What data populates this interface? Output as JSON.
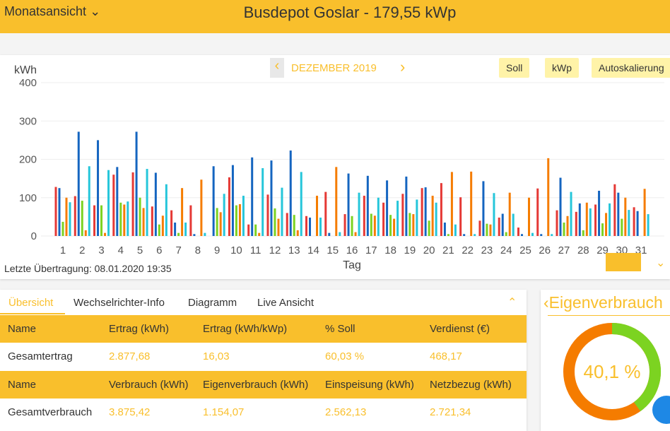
{
  "header": {
    "view": "Monatsansicht",
    "title": "Busdepot Goslar - 179,55 kWp"
  },
  "nav": {
    "month": "DEZEMBER 2019",
    "buttons": [
      "Soll",
      "kWp",
      "Autoskalierung"
    ]
  },
  "chart_data": {
    "type": "bar",
    "y_label": "kWh",
    "x_label": "Tag",
    "categories": [
      "1",
      "2",
      "3",
      "4",
      "5",
      "6",
      "7",
      "8",
      "9",
      "10",
      "11",
      "12",
      "13",
      "14",
      "15",
      "16",
      "17",
      "18",
      "19",
      "20",
      "21",
      "22",
      "23",
      "24",
      "25",
      "26",
      "27",
      "28",
      "29",
      "30",
      "31"
    ],
    "series": [
      {
        "color": "#e53935",
        "values": [
          128,
          104,
          80,
          160,
          166,
          77,
          67,
          80,
          0,
          153,
          30,
          108,
          60,
          52,
          115,
          57,
          105,
          87,
          110,
          125,
          138,
          101,
          40,
          48,
          22,
          124,
          67,
          63,
          82,
          135,
          75
        ]
      },
      {
        "color": "#1565c0",
        "values": [
          125,
          272,
          250,
          180,
          272,
          165,
          35,
          5,
          182,
          185,
          205,
          197,
          223,
          48,
          8,
          163,
          157,
          145,
          155,
          127,
          35,
          5,
          143,
          58,
          5,
          5,
          152,
          85,
          118,
          113,
          65
        ]
      },
      {
        "color": "#7cd321",
        "values": [
          37,
          92,
          80,
          87,
          100,
          30,
          8,
          0,
          73,
          80,
          30,
          72,
          55,
          0,
          0,
          52,
          58,
          55,
          60,
          40,
          5,
          0,
          32,
          10,
          0,
          0,
          35,
          15,
          33,
          45,
          0
        ]
      },
      {
        "color": "#f57c00",
        "values": [
          100,
          15,
          8,
          82,
          73,
          53,
          125,
          147,
          62,
          83,
          8,
          45,
          15,
          105,
          180,
          10,
          53,
          45,
          57,
          105,
          167,
          168,
          30,
          113,
          100,
          203,
          52,
          87,
          60,
          100,
          123
        ]
      },
      {
        "color": "#26c6da",
        "values": [
          88,
          182,
          172,
          90,
          175,
          135,
          35,
          8,
          110,
          105,
          177,
          126,
          167,
          48,
          10,
          113,
          100,
          92,
          95,
          87,
          30,
          5,
          112,
          58,
          8,
          5,
          115,
          72,
          85,
          68,
          57
        ]
      }
    ],
    "ylim": [
      0,
      400
    ],
    "yticks": [
      0,
      100,
      200,
      300,
      400
    ],
    "grid": true
  },
  "last_transfer": "Letzte Übertragung: 08.01.2020 19:35",
  "tabs": [
    "Übersicht",
    "Wechselrichter-Info",
    "Diagramm",
    "Live Ansicht"
  ],
  "tables": [
    {
      "header": [
        "Name",
        "Ertrag (kWh)",
        "Ertrag (kWh/kWp)",
        "% Soll",
        "Verdienst (€)"
      ],
      "row": [
        "Gesamtertrag",
        "2.877,68",
        "16,03",
        "60,03 %",
        "468,17"
      ]
    },
    {
      "header": [
        "Name",
        "Verbrauch (kWh)",
        "Eigenverbrauch (kWh)",
        "Einspeisung (kWh)",
        "Netzbezug (kWh)"
      ],
      "row": [
        "Gesamtverbrauch",
        "3.875,42",
        "1.154,07",
        "2.562,13",
        "2.721,34"
      ]
    }
  ],
  "donut": {
    "title": "Eigenverbrauch",
    "value": 40.1,
    "label": "40,1 %",
    "color": "#7cd321",
    "rest_color": "#f57c00"
  }
}
